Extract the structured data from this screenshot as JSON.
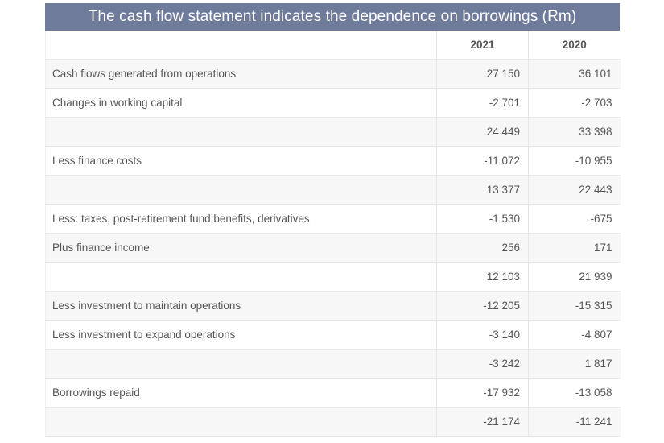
{
  "title": "The cash flow statement indicates the dependence on borrowings (Rm)",
  "columns": [
    "",
    "2021",
    "2020"
  ],
  "rows": [
    {
      "label": "Cash flows generated from operations",
      "y2021": "27 150",
      "y2020": "36 101"
    },
    {
      "label": "Changes in working capital",
      "y2021": "-2 701",
      "y2020": "-2 703"
    },
    {
      "label": "",
      "y2021": "24 449",
      "y2020": "33 398"
    },
    {
      "label": "Less finance costs",
      "y2021": "-11 072",
      "y2020": "-10 955"
    },
    {
      "label": "",
      "y2021": "13 377",
      "y2020": "22 443"
    },
    {
      "label": "Less: taxes, post-retirement fund benefits, derivatives",
      "y2021": "-1 530",
      "y2020": "-675"
    },
    {
      "label": "Plus finance income",
      "y2021": "256",
      "y2020": "171"
    },
    {
      "label": "",
      "y2021": "12 103",
      "y2020": "21 939"
    },
    {
      "label": "Less investment to maintain operations",
      "y2021": "-12 205",
      "y2020": "-15 315"
    },
    {
      "label": "Less investment to expand operations",
      "y2021": "-3 140",
      "y2020": "-4 807"
    },
    {
      "label": "",
      "y2021": "-3 242",
      "y2020": "1 817"
    },
    {
      "label": "Borrowings repaid",
      "y2021": "-17 932",
      "y2020": "-13 058"
    },
    {
      "label": "",
      "y2021": "-21 174",
      "y2020": "-11 241"
    }
  ],
  "colors": {
    "title_bg": "#6f7b9b",
    "title_text": "#ffffff",
    "row_stripe": "#f7f7f7",
    "text": "#555555"
  }
}
